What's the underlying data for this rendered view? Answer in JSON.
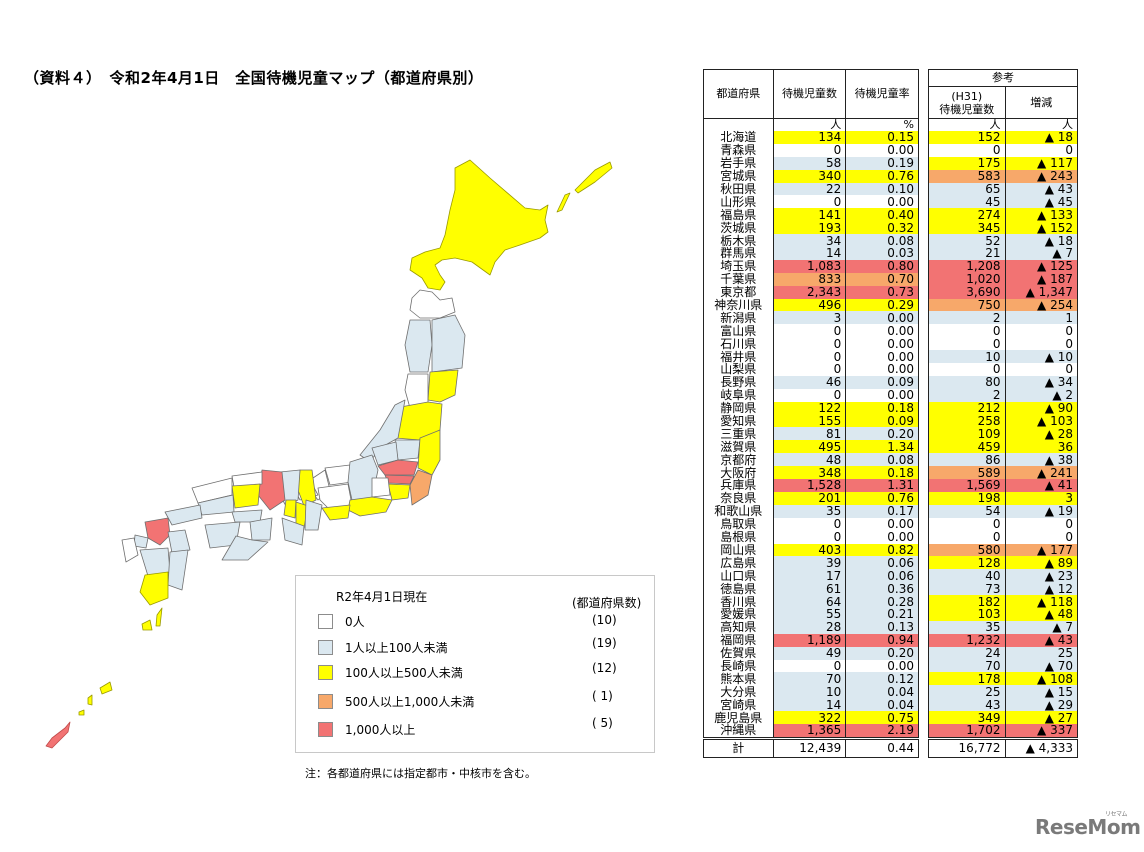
{
  "title": "（資料４）　令和2年4月1日　全国待機児童マップ（都道府県別）",
  "colors": {
    "zero": "#ffffff",
    "lt100": "#dbe8f0",
    "lt500": "#ffff00",
    "lt1000": "#f7a86a",
    "ge1000": "#f27373",
    "border": "#222222"
  },
  "legend": {
    "as_of": "R2年4月1日現在",
    "count_header": "(都道府県数)",
    "items": [
      {
        "label": "0人",
        "count": "(10)",
        "color": "#ffffff"
      },
      {
        "label": "1人以上100人未満",
        "count": "(19)",
        "color": "#dbe8f0"
      },
      {
        "label": "100人以上500人未満",
        "count": "(12)",
        "color": "#ffff00"
      },
      {
        "label": "500人以上1,000人未満",
        "count": "( 1)",
        "color": "#f7a86a"
      },
      {
        "label": "1,000人以上",
        "count": "( 5)",
        "color": "#f27373"
      }
    ]
  },
  "note": "注：各都道府県には指定都市・中核市を含む。",
  "table": {
    "headers": {
      "pref": "都道府県",
      "waiting": "待機児童数",
      "rate": "待機児童率",
      "reference": "参考",
      "h31_line1": "(H31)",
      "h31_line2": "待機児童数",
      "change": "増減"
    },
    "units": {
      "waiting": "人",
      "rate": "%",
      "h31": "人",
      "change": "人"
    },
    "rows": [
      {
        "pref": "北海道",
        "waiting": "134",
        "rate": "0.15",
        "h31": "152",
        "change": "▲ 18",
        "cL": "y",
        "cR": "y"
      },
      {
        "pref": "青森県",
        "waiting": "0",
        "rate": "0.00",
        "h31": "0",
        "change": "0",
        "cL": "w",
        "cR": "w"
      },
      {
        "pref": "岩手県",
        "waiting": "58",
        "rate": "0.19",
        "h31": "175",
        "change": "▲ 117",
        "cL": "b",
        "cR": "y"
      },
      {
        "pref": "宮城県",
        "waiting": "340",
        "rate": "0.76",
        "h31": "583",
        "change": "▲ 243",
        "cL": "y",
        "cR": "o"
      },
      {
        "pref": "秋田県",
        "waiting": "22",
        "rate": "0.10",
        "h31": "65",
        "change": "▲ 43",
        "cL": "b",
        "cR": "b"
      },
      {
        "pref": "山形県",
        "waiting": "0",
        "rate": "0.00",
        "h31": "45",
        "change": "▲ 45",
        "cL": "w",
        "cR": "b"
      },
      {
        "pref": "福島県",
        "waiting": "141",
        "rate": "0.40",
        "h31": "274",
        "change": "▲ 133",
        "cL": "y",
        "cR": "y"
      },
      {
        "pref": "茨城県",
        "waiting": "193",
        "rate": "0.32",
        "h31": "345",
        "change": "▲ 152",
        "cL": "y",
        "cR": "y"
      },
      {
        "pref": "栃木県",
        "waiting": "34",
        "rate": "0.08",
        "h31": "52",
        "change": "▲ 18",
        "cL": "b",
        "cR": "b"
      },
      {
        "pref": "群馬県",
        "waiting": "14",
        "rate": "0.03",
        "h31": "21",
        "change": "▲ 7",
        "cL": "b",
        "cR": "b"
      },
      {
        "pref": "埼玉県",
        "waiting": "1,083",
        "rate": "0.80",
        "h31": "1,208",
        "change": "▲ 125",
        "cL": "r",
        "cR": "r"
      },
      {
        "pref": "千葉県",
        "waiting": "833",
        "rate": "0.70",
        "h31": "1,020",
        "change": "▲ 187",
        "cL": "o",
        "cR": "r"
      },
      {
        "pref": "東京都",
        "waiting": "2,343",
        "rate": "0.73",
        "h31": "3,690",
        "change": "▲ 1,347",
        "cL": "r",
        "cR": "r"
      },
      {
        "pref": "神奈川県",
        "waiting": "496",
        "rate": "0.29",
        "h31": "750",
        "change": "▲ 254",
        "cL": "y",
        "cR": "o"
      },
      {
        "pref": "新潟県",
        "waiting": "3",
        "rate": "0.00",
        "h31": "2",
        "change": "1",
        "cL": "b",
        "cR": "b"
      },
      {
        "pref": "富山県",
        "waiting": "0",
        "rate": "0.00",
        "h31": "0",
        "change": "0",
        "cL": "w",
        "cR": "w"
      },
      {
        "pref": "石川県",
        "waiting": "0",
        "rate": "0.00",
        "h31": "0",
        "change": "0",
        "cL": "w",
        "cR": "w"
      },
      {
        "pref": "福井県",
        "waiting": "0",
        "rate": "0.00",
        "h31": "10",
        "change": "▲ 10",
        "cL": "w",
        "cR": "b"
      },
      {
        "pref": "山梨県",
        "waiting": "0",
        "rate": "0.00",
        "h31": "0",
        "change": "0",
        "cL": "w",
        "cR": "w"
      },
      {
        "pref": "長野県",
        "waiting": "46",
        "rate": "0.09",
        "h31": "80",
        "change": "▲ 34",
        "cL": "b",
        "cR": "b"
      },
      {
        "pref": "岐阜県",
        "waiting": "0",
        "rate": "0.00",
        "h31": "2",
        "change": "▲ 2",
        "cL": "w",
        "cR": "b"
      },
      {
        "pref": "静岡県",
        "waiting": "122",
        "rate": "0.18",
        "h31": "212",
        "change": "▲ 90",
        "cL": "y",
        "cR": "y"
      },
      {
        "pref": "愛知県",
        "waiting": "155",
        "rate": "0.09",
        "h31": "258",
        "change": "▲ 103",
        "cL": "y",
        "cR": "y"
      },
      {
        "pref": "三重県",
        "waiting": "81",
        "rate": "0.20",
        "h31": "109",
        "change": "▲ 28",
        "cL": "b",
        "cR": "y"
      },
      {
        "pref": "滋賀県",
        "waiting": "495",
        "rate": "1.34",
        "h31": "459",
        "change": "36",
        "cL": "y",
        "cR": "y"
      },
      {
        "pref": "京都府",
        "waiting": "48",
        "rate": "0.08",
        "h31": "86",
        "change": "▲ 38",
        "cL": "b",
        "cR": "b"
      },
      {
        "pref": "大阪府",
        "waiting": "348",
        "rate": "0.18",
        "h31": "589",
        "change": "▲ 241",
        "cL": "y",
        "cR": "o"
      },
      {
        "pref": "兵庫県",
        "waiting": "1,528",
        "rate": "1.31",
        "h31": "1,569",
        "change": "▲ 41",
        "cL": "r",
        "cR": "r"
      },
      {
        "pref": "奈良県",
        "waiting": "201",
        "rate": "0.76",
        "h31": "198",
        "change": "3",
        "cL": "y",
        "cR": "y"
      },
      {
        "pref": "和歌山県",
        "waiting": "35",
        "rate": "0.17",
        "h31": "54",
        "change": "▲ 19",
        "cL": "b",
        "cR": "b"
      },
      {
        "pref": "鳥取県",
        "waiting": "0",
        "rate": "0.00",
        "h31": "0",
        "change": "0",
        "cL": "w",
        "cR": "w"
      },
      {
        "pref": "島根県",
        "waiting": "0",
        "rate": "0.00",
        "h31": "0",
        "change": "0",
        "cL": "w",
        "cR": "w"
      },
      {
        "pref": "岡山県",
        "waiting": "403",
        "rate": "0.82",
        "h31": "580",
        "change": "▲ 177",
        "cL": "y",
        "cR": "o"
      },
      {
        "pref": "広島県",
        "waiting": "39",
        "rate": "0.06",
        "h31": "128",
        "change": "▲ 89",
        "cL": "b",
        "cR": "y"
      },
      {
        "pref": "山口県",
        "waiting": "17",
        "rate": "0.06",
        "h31": "40",
        "change": "▲ 23",
        "cL": "b",
        "cR": "b"
      },
      {
        "pref": "徳島県",
        "waiting": "61",
        "rate": "0.36",
        "h31": "73",
        "change": "▲ 12",
        "cL": "b",
        "cR": "b"
      },
      {
        "pref": "香川県",
        "waiting": "64",
        "rate": "0.28",
        "h31": "182",
        "change": "▲ 118",
        "cL": "b",
        "cR": "y"
      },
      {
        "pref": "愛媛県",
        "waiting": "55",
        "rate": "0.21",
        "h31": "103",
        "change": "▲ 48",
        "cL": "b",
        "cR": "y"
      },
      {
        "pref": "高知県",
        "waiting": "28",
        "rate": "0.13",
        "h31": "35",
        "change": "▲ 7",
        "cL": "b",
        "cR": "b"
      },
      {
        "pref": "福岡県",
        "waiting": "1,189",
        "rate": "0.94",
        "h31": "1,232",
        "change": "▲ 43",
        "cL": "r",
        "cR": "r"
      },
      {
        "pref": "佐賀県",
        "waiting": "49",
        "rate": "0.20",
        "h31": "24",
        "change": "25",
        "cL": "b",
        "cR": "b"
      },
      {
        "pref": "長崎県",
        "waiting": "0",
        "rate": "0.00",
        "h31": "70",
        "change": "▲ 70",
        "cL": "w",
        "cR": "b"
      },
      {
        "pref": "熊本県",
        "waiting": "70",
        "rate": "0.12",
        "h31": "178",
        "change": "▲ 108",
        "cL": "b",
        "cR": "y"
      },
      {
        "pref": "大分県",
        "waiting": "10",
        "rate": "0.04",
        "h31": "25",
        "change": "▲ 15",
        "cL": "b",
        "cR": "b"
      },
      {
        "pref": "宮崎県",
        "waiting": "14",
        "rate": "0.04",
        "h31": "43",
        "change": "▲ 29",
        "cL": "b",
        "cR": "b"
      },
      {
        "pref": "鹿児島県",
        "waiting": "322",
        "rate": "0.75",
        "h31": "349",
        "change": "▲ 27",
        "cL": "y",
        "cR": "y"
      },
      {
        "pref": "沖縄県",
        "waiting": "1,365",
        "rate": "2.19",
        "h31": "1,702",
        "change": "▲ 337",
        "cL": "r",
        "cR": "r"
      }
    ],
    "total": {
      "label": "計",
      "waiting": "12,439",
      "rate": "0.44",
      "h31": "16,772",
      "change": "▲ 4,333"
    }
  },
  "watermark": {
    "text": "ReseMom",
    "kana": "リセマム"
  }
}
